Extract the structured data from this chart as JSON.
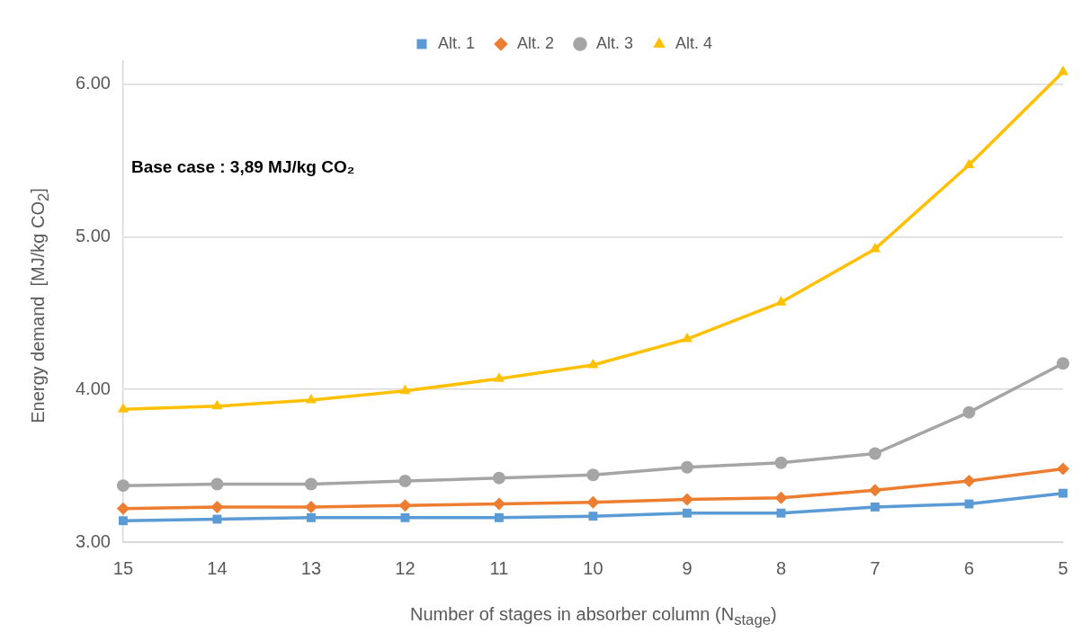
{
  "chart_data": {
    "type": "line",
    "xlabel": "Number of stages in absorber column (N$_{stage}$)",
    "ylabel": "Energy demand  [MJ/kg CO$_{2}$]",
    "categories": [
      "15",
      "14",
      "13",
      "12",
      "11",
      "10",
      "9",
      "8",
      "7",
      "6",
      "5"
    ],
    "series": [
      {
        "name": "Alt. 1",
        "color": "#5b9bd5",
        "marker": "square",
        "values": [
          3.14,
          3.15,
          3.16,
          3.16,
          3.16,
          3.17,
          3.19,
          3.19,
          3.23,
          3.25,
          3.32
        ]
      },
      {
        "name": "Alt. 2",
        "color": "#ed7d31",
        "marker": "diamond",
        "values": [
          3.22,
          3.23,
          3.23,
          3.24,
          3.25,
          3.26,
          3.28,
          3.29,
          3.34,
          3.4,
          3.48
        ]
      },
      {
        "name": "Alt. 3",
        "color": "#a5a5a5",
        "marker": "circle",
        "values": [
          3.37,
          3.38,
          3.38,
          3.4,
          3.42,
          3.44,
          3.49,
          3.52,
          3.58,
          3.85,
          4.17
        ]
      },
      {
        "name": "Alt. 4",
        "color": "#ffc000",
        "marker": "triangle",
        "values": [
          3.87,
          3.89,
          3.93,
          3.99,
          4.07,
          4.16,
          4.33,
          4.57,
          4.92,
          5.47,
          6.08
        ]
      }
    ],
    "ylim": [
      3,
      6.15
    ],
    "yticks": [
      {
        "value": 3,
        "label": "3.00"
      },
      {
        "value": 4,
        "label": "4.00"
      },
      {
        "value": 5,
        "label": "5.00"
      },
      {
        "value": 6,
        "label": "6.00"
      }
    ],
    "grid": "y",
    "legend": "top",
    "line_style": "solid",
    "annotations": [
      "Base case : 3,89 MJ/kg CO₂"
    ]
  }
}
